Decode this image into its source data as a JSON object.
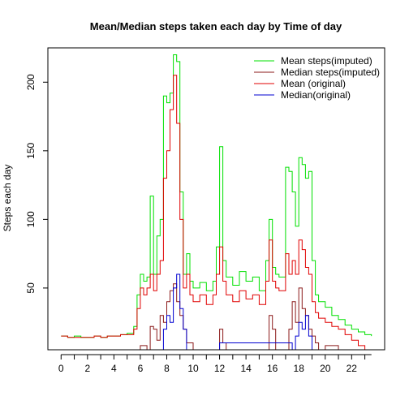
{
  "chart_data": {
    "type": "line",
    "title": "Mean/Median steps taken each day by Time of day",
    "xlabel": "",
    "ylabel": "Steps each day",
    "xlim": [
      -1,
      24.5
    ],
    "ylim": [
      5,
      225
    ],
    "x_ticks": [
      0,
      2,
      4,
      6,
      8,
      10,
      12,
      14,
      16,
      18,
      20,
      22
    ],
    "x_tick_labels": [
      "0",
      "2",
      "4",
      "6",
      "8",
      "10",
      "12",
      "14",
      "16",
      "18",
      "20",
      "22"
    ],
    "y_ticks": [
      50,
      100,
      150,
      200
    ],
    "y_tick_labels": [
      "50",
      "100",
      "150",
      "200"
    ],
    "grid": false,
    "legend_position": "top-right",
    "series": [
      {
        "name": "Mean steps(imputed)",
        "color": "#00e000",
        "x": [
          0,
          0.5,
          1,
          1.5,
          2,
          2.5,
          3,
          3.5,
          4,
          4.5,
          5,
          5.5,
          5.75,
          6,
          6.25,
          6.5,
          6.75,
          7,
          7.25,
          7.5,
          7.75,
          8,
          8.25,
          8.5,
          8.75,
          9,
          9.25,
          9.5,
          9.75,
          10,
          10.5,
          11,
          11.5,
          11.75,
          12,
          12.25,
          12.5,
          13,
          13.5,
          14,
          14.5,
          15,
          15.5,
          15.75,
          16,
          16.25,
          16.5,
          17,
          17.25,
          17.5,
          17.75,
          18,
          18.25,
          18.5,
          18.75,
          19,
          19.25,
          19.5,
          20,
          20.5,
          21,
          21.5,
          22,
          22.5,
          23,
          23.5
        ],
        "y": [
          15,
          14,
          15,
          14,
          14,
          15,
          14,
          15,
          15,
          16,
          17,
          22,
          45,
          60,
          55,
          58,
          117,
          60,
          88,
          100,
          190,
          185,
          192,
          220,
          215,
          120,
          60,
          75,
          55,
          50,
          54,
          48,
          55,
          80,
          153,
          70,
          58,
          52,
          62,
          55,
          58,
          48,
          70,
          100,
          65,
          60,
          58,
          138,
          135,
          120,
          95,
          145,
          140,
          130,
          135,
          70,
          45,
          40,
          36,
          30,
          27,
          23,
          20,
          18,
          16,
          15
        ]
      },
      {
        "name": "Median steps(imputed)",
        "color": "#8b1a1a",
        "x": [
          5.8,
          6,
          6.5,
          6.75,
          7,
          7.25,
          7.5,
          7.75,
          8,
          8.25,
          8.5,
          8.75,
          9,
          9.25,
          9.5,
          10,
          11.5,
          12,
          12.25,
          12.5,
          15.5,
          15.75,
          16,
          16.25,
          17,
          17.25,
          17.5,
          17.75,
          18,
          18.25,
          18.5,
          18.75,
          19,
          19.25,
          19.5,
          20,
          21
        ],
        "y": [
          5,
          8,
          5,
          22,
          20,
          12,
          30,
          25,
          40,
          48,
          53,
          40,
          30,
          20,
          10,
          5,
          5,
          20,
          10,
          5,
          5,
          30,
          20,
          5,
          5,
          20,
          40,
          25,
          50,
          35,
          30,
          20,
          15,
          10,
          5,
          8,
          5
        ]
      },
      {
        "name": "Mean (original)",
        "color": "#e00000",
        "x": [
          0,
          0.5,
          1,
          1.5,
          2,
          2.5,
          3,
          3.5,
          4,
          4.5,
          5,
          5.5,
          5.75,
          6,
          6.25,
          6.5,
          6.75,
          7,
          7.25,
          7.5,
          7.75,
          8,
          8.25,
          8.5,
          8.75,
          9,
          9.25,
          9.5,
          9.75,
          10,
          10.5,
          11,
          11.5,
          11.75,
          12,
          12.25,
          12.5,
          13,
          13.5,
          14,
          14.5,
          15,
          15.5,
          15.75,
          16,
          16.25,
          16.5,
          17,
          17.25,
          17.5,
          17.75,
          18,
          18.25,
          18.5,
          18.75,
          19,
          19.25,
          19.5,
          20,
          20.5,
          21,
          21.5,
          22,
          22.5,
          23,
          23.5
        ],
        "y": [
          15,
          14,
          14,
          14,
          14,
          15,
          14,
          15,
          15,
          16,
          16,
          20,
          35,
          50,
          45,
          50,
          60,
          48,
          60,
          70,
          130,
          150,
          180,
          205,
          170,
          100,
          50,
          60,
          45,
          40,
          45,
          38,
          45,
          60,
          80,
          55,
          45,
          40,
          48,
          42,
          45,
          38,
          55,
          85,
          55,
          50,
          48,
          75,
          60,
          70,
          60,
          85,
          78,
          65,
          60,
          40,
          32,
          28,
          25,
          22,
          20,
          16,
          12,
          8,
          5,
          5
        ]
      },
      {
        "name": "Median(original)",
        "color": "#0000d0",
        "x": [
          7.5,
          7.75,
          8,
          8.25,
          8.5,
          8.75,
          9,
          9.25,
          9.5,
          12,
          17.5,
          17.75,
          18,
          18.25,
          18.5,
          18.75,
          19
        ],
        "y": [
          5,
          20,
          30,
          25,
          50,
          60,
          35,
          20,
          5,
          10,
          5,
          15,
          25,
          20,
          30,
          15,
          5
        ]
      }
    ]
  }
}
